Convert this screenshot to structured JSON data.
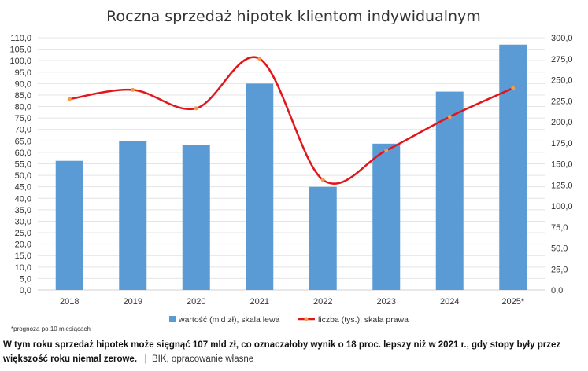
{
  "chart_data": {
    "type": "bar+line",
    "title": "Roczna sprzedaż hipotek klientom indywidualnym",
    "categories": [
      "2018",
      "2019",
      "2020",
      "2021",
      "2022",
      "2023",
      "2024",
      "2025*"
    ],
    "series": [
      {
        "name": "wartość (mld zł), skala lewa",
        "type": "bar",
        "axis": "left",
        "color": "#5b9bd5",
        "values": [
          56.3,
          65.1,
          63.3,
          90.0,
          45.0,
          63.8,
          86.5,
          107.0
        ]
      },
      {
        "name": "liczba (tys.), skala prawa",
        "type": "line",
        "axis": "right",
        "color": "#e0161b",
        "marker_color": "#f39c4a",
        "values": [
          227,
          238,
          216,
          275,
          131,
          166,
          206,
          240
        ]
      }
    ],
    "left_axis": {
      "ylim": [
        0,
        110
      ],
      "step": 5,
      "ticks": [
        "0,0",
        "5,0",
        "10,0",
        "15,0",
        "20,0",
        "25,0",
        "30,0",
        "35,0",
        "40,0",
        "45,0",
        "50,0",
        "55,0",
        "60,0",
        "65,0",
        "70,0",
        "75,0",
        "80,0",
        "85,0",
        "90,0",
        "95,0",
        "100,0",
        "105,0",
        "110,0"
      ]
    },
    "right_axis": {
      "ylim": [
        0,
        300
      ],
      "step": 25,
      "ticks": [
        "0,0",
        "25,0",
        "50,0",
        "75,0",
        "100,0",
        "125,0",
        "150,0",
        "175,0",
        "200,0",
        "225,0",
        "250,0",
        "275,0",
        "300,0"
      ]
    },
    "grid": true,
    "legend_position": "bottom",
    "footnote": "*prognoza po 10 miesiącach"
  },
  "caption": {
    "text": "W tym roku sprzedaż hipotek może sięgnąć 107 mld zł, co oznaczałoby wynik o 18 proc. lepszy niż w 2021 r., gdy stopy były przez większość roku niemal zerowe.",
    "separator": "|",
    "source": "BIK, opracowanie własne"
  }
}
